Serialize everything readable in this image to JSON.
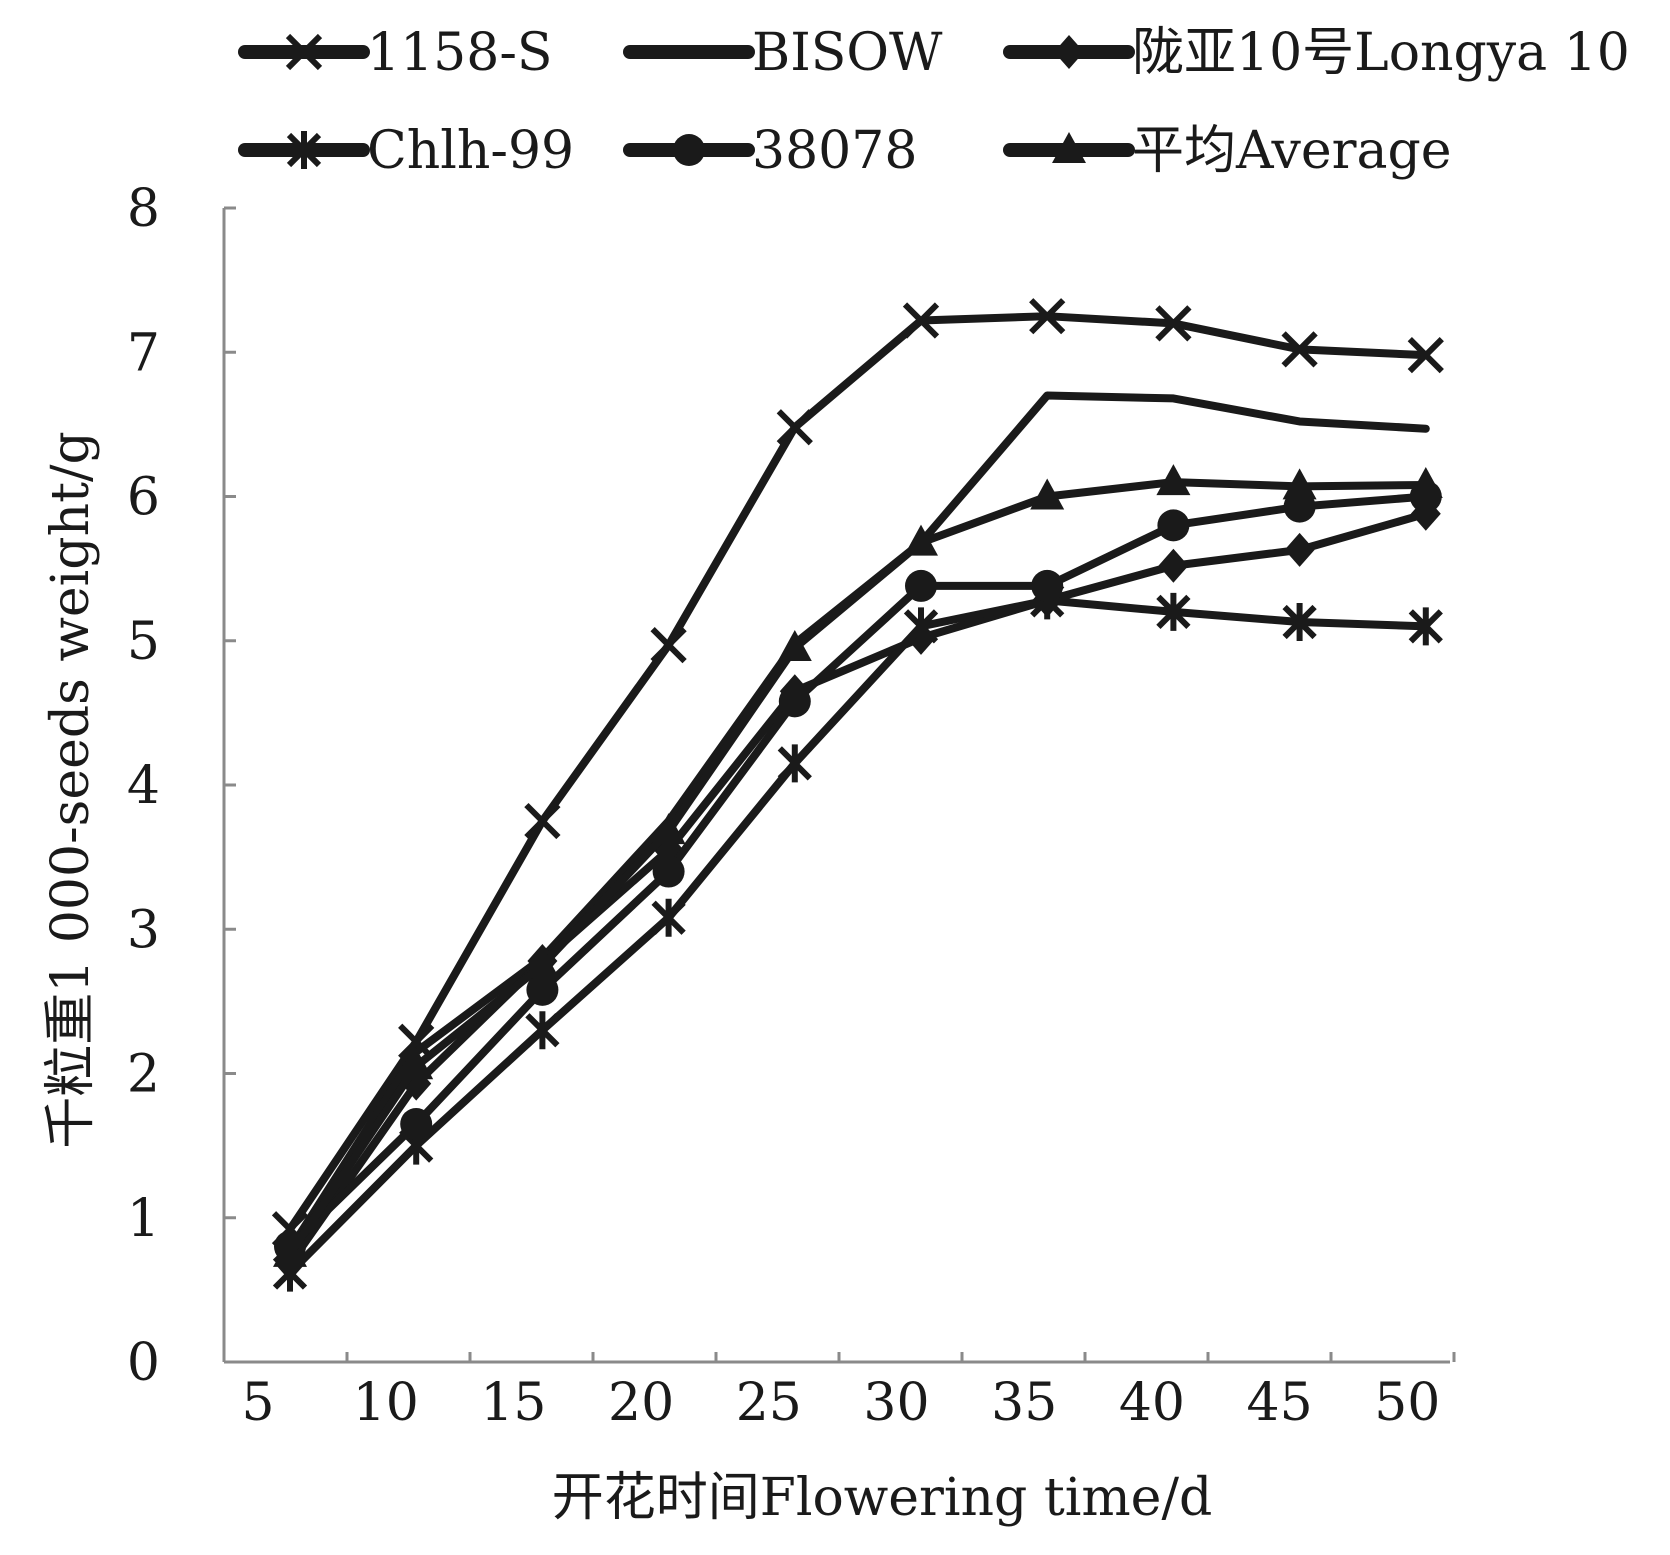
{
  "chart_data": {
    "type": "line",
    "xlabel": "开花时间Flowering time/d",
    "ylabel": "千粒重1 000-seeds weight/g",
    "xlim": [
      5,
      50
    ],
    "ylim": [
      0,
      8
    ],
    "x_ticks": [
      "5",
      "10",
      "15",
      "20",
      "25",
      "30",
      "35",
      "40",
      "45",
      "50"
    ],
    "y_ticks": [
      "0",
      "1",
      "2",
      "3",
      "4",
      "5",
      "6",
      "7",
      "8"
    ],
    "grid": false,
    "legend_position": "top",
    "x": [
      5,
      10,
      15,
      20,
      25,
      30,
      35,
      40,
      45,
      50
    ],
    "series": [
      {
        "name": "1158-S",
        "marker": "x",
        "values": [
          0.92,
          2.22,
          3.75,
          4.97,
          6.48,
          7.22,
          7.25,
          7.2,
          7.02,
          6.98
        ]
      },
      {
        "name": "BISOW",
        "marker": "none",
        "values": [
          0.78,
          2.15,
          2.8,
          3.75,
          4.98,
          5.68,
          6.7,
          6.68,
          6.52,
          6.47
        ]
      },
      {
        "name": "陇亚10号Longya 10",
        "marker": "diamond",
        "values": [
          0.68,
          1.93,
          2.78,
          3.55,
          4.65,
          5.02,
          5.28,
          5.52,
          5.63,
          5.88
        ]
      },
      {
        "name": "Chlh-99",
        "marker": "asterisk",
        "values": [
          0.62,
          1.5,
          2.3,
          3.08,
          4.15,
          5.1,
          5.28,
          5.2,
          5.13,
          5.1
        ]
      },
      {
        "name": "38078",
        "marker": "circle",
        "values": [
          0.8,
          1.65,
          2.58,
          3.4,
          4.58,
          5.38,
          5.38,
          5.8,
          5.93,
          6.0
        ]
      },
      {
        "name": "平均Average",
        "marker": "triangle",
        "values": [
          0.75,
          2.05,
          2.75,
          3.68,
          4.95,
          5.68,
          6.0,
          6.1,
          6.07,
          6.08
        ]
      }
    ]
  }
}
